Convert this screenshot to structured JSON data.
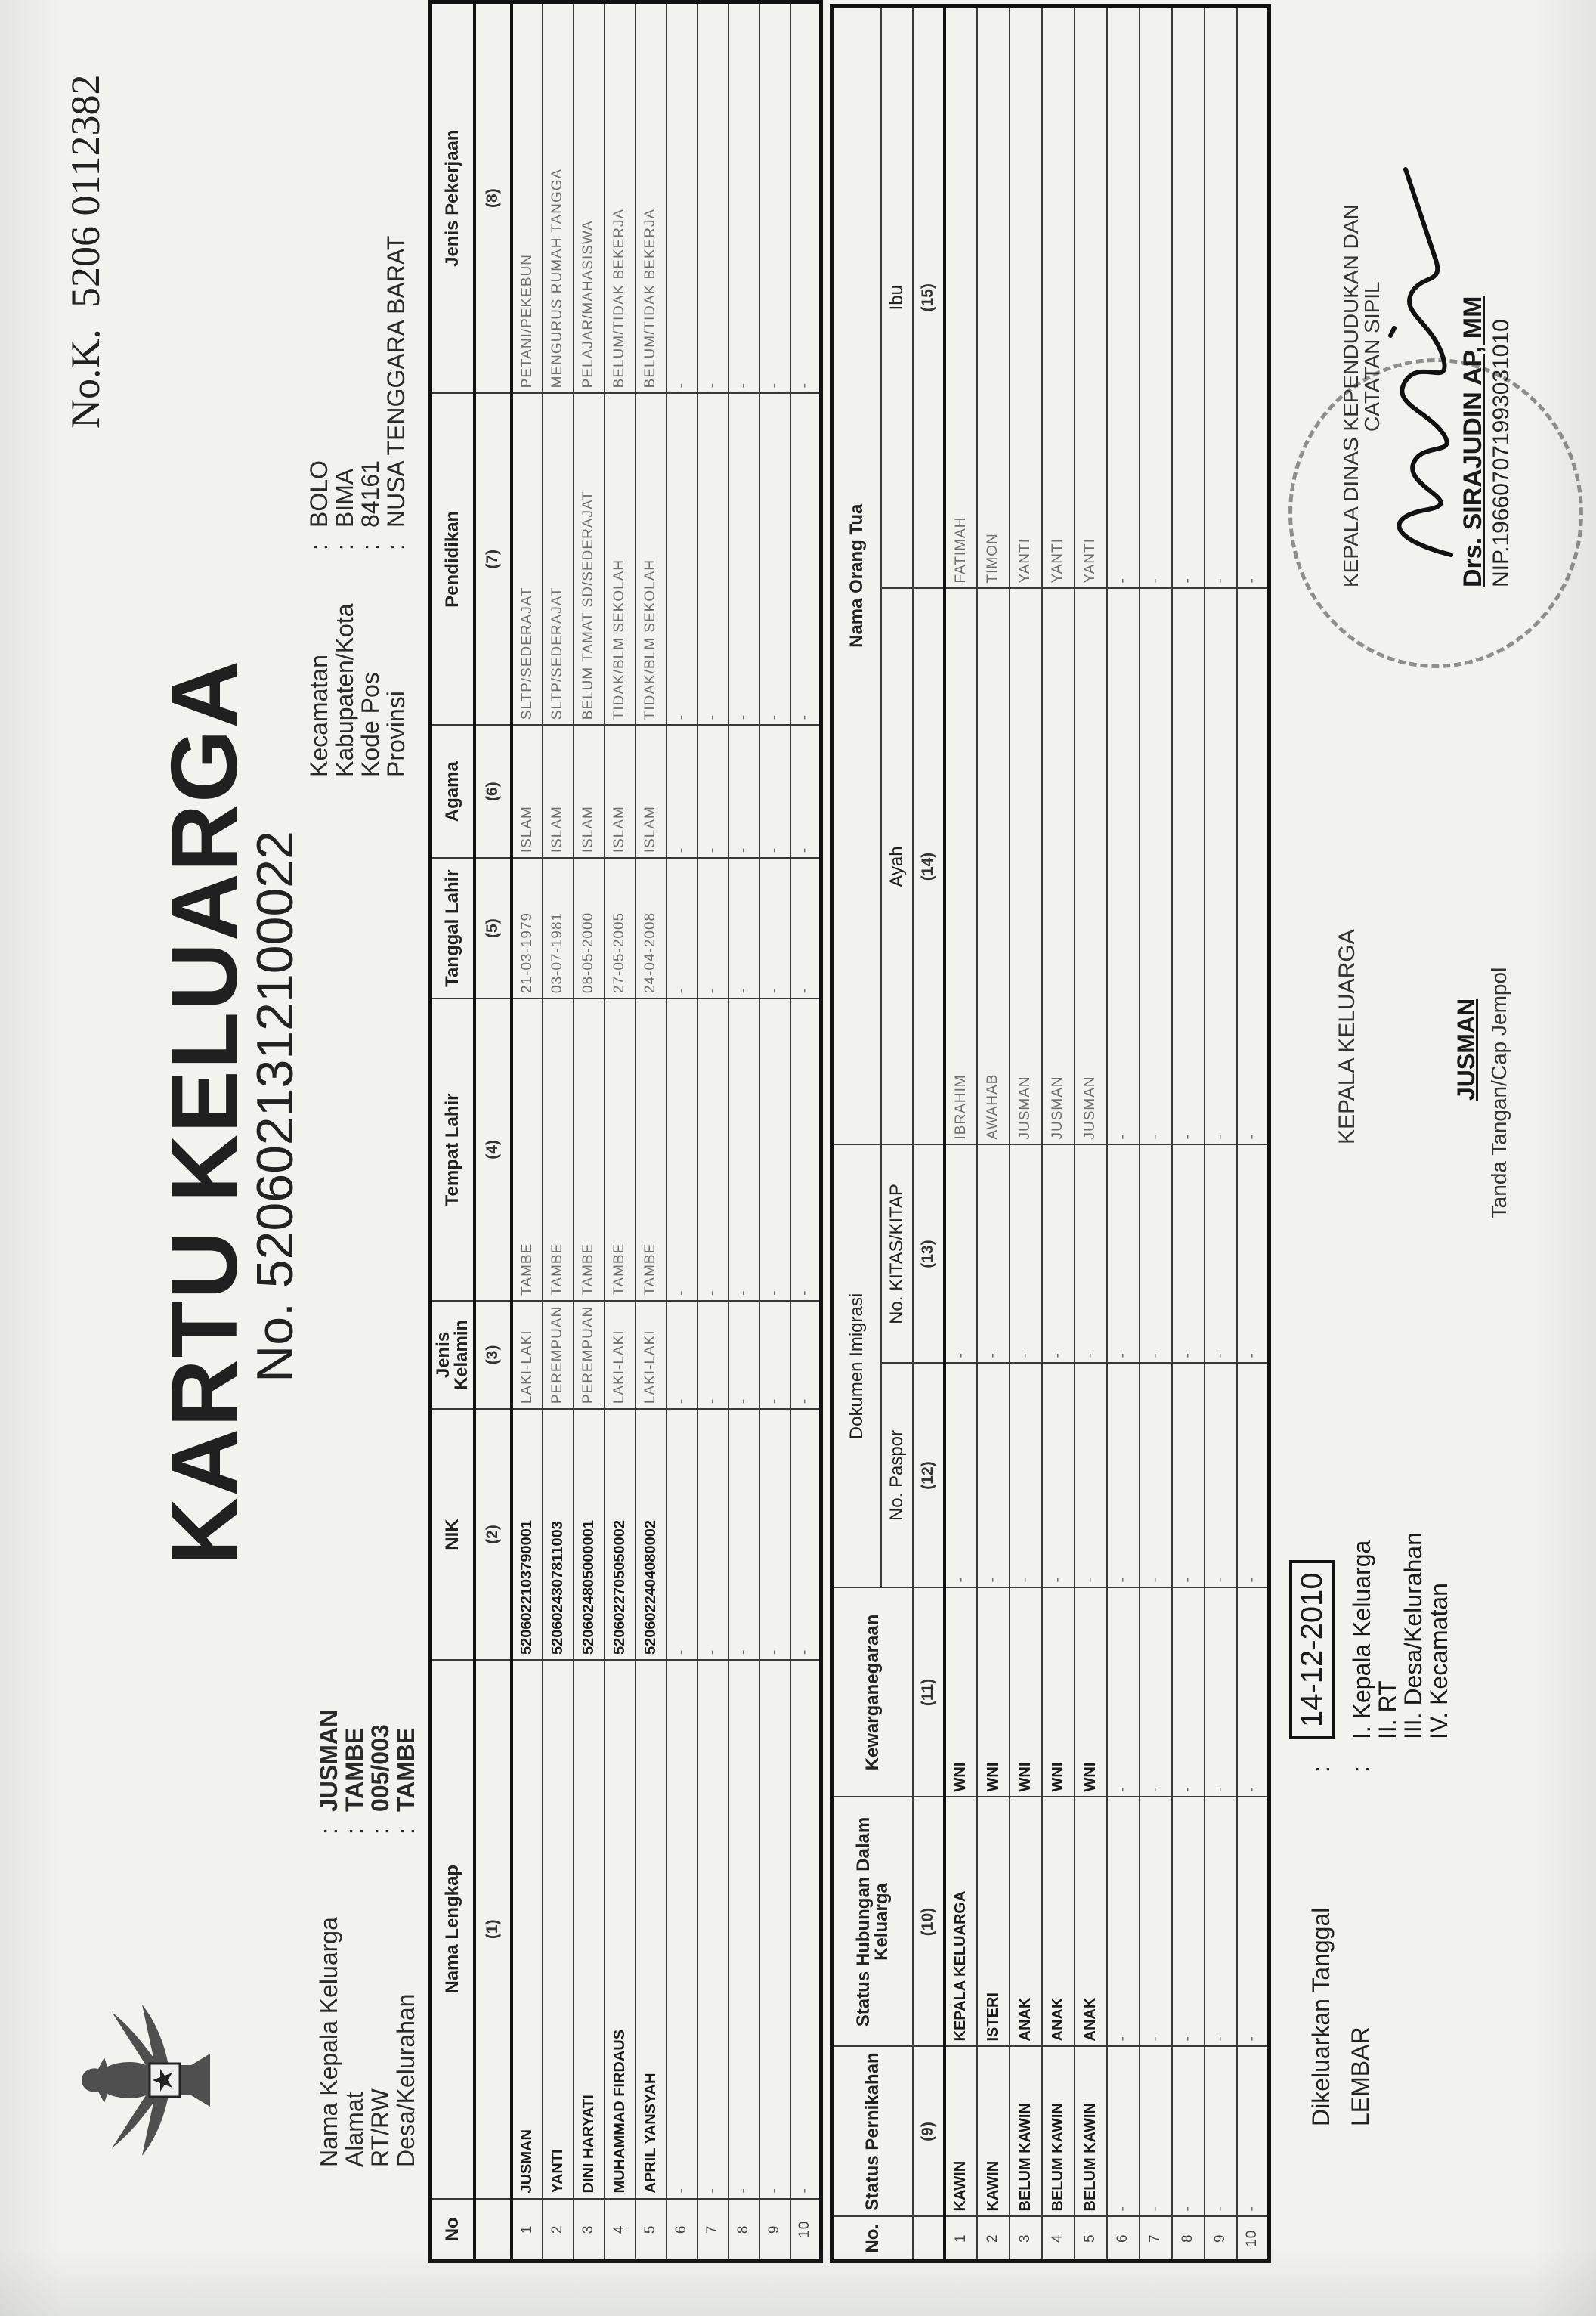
{
  "document": {
    "kk_serial_label": "No.K.",
    "kk_serial": "5206 0112382",
    "title": "KARTU KELUARGA",
    "number": "No. 5206021312100022",
    "header_left": [
      {
        "label": "Nama Kepala Keluarga",
        "value": "JUSMAN"
      },
      {
        "label": "Alamat",
        "value": "TAMBE"
      },
      {
        "label": "RT/RW",
        "value": "005/003"
      },
      {
        "label": "Desa/Kelurahan",
        "value": "TAMBE"
      }
    ],
    "header_right": [
      {
        "label": "Kecamatan",
        "value": "BOLO"
      },
      {
        "label": "Kabupaten/Kota",
        "value": "BIMA"
      },
      {
        "label": "Kode Pos",
        "value": "84161"
      },
      {
        "label": "Provinsi",
        "value": "NUSA TENGGARA BARAT"
      }
    ],
    "colon": ":",
    "table1": {
      "columns": [
        {
          "title": "No",
          "num": ""
        },
        {
          "title": "Nama Lengkap",
          "num": "(1)"
        },
        {
          "title": "NIK",
          "num": "(2)"
        },
        {
          "title": "Jenis Kelamin",
          "num": "(3)"
        },
        {
          "title": "Tempat Lahir",
          "num": "(4)"
        },
        {
          "title": "Tanggal Lahir",
          "num": "(5)"
        },
        {
          "title": "Agama",
          "num": "(6)"
        },
        {
          "title": "Pendidikan",
          "num": "(7)"
        },
        {
          "title": "Jenis Pekerjaan",
          "num": "(8)"
        }
      ],
      "rows": [
        [
          "1",
          "JUSMAN",
          "5206022103790001",
          "LAKI-LAKI",
          "TAMBE",
          "21-03-1979",
          "ISLAM",
          "SLTP/SEDERAJAT",
          "PETANI/PEKEBUN"
        ],
        [
          "2",
          "YANTI",
          "5206024307811003",
          "PEREMPUAN",
          "TAMBE",
          "03-07-1981",
          "ISLAM",
          "SLTP/SEDERAJAT",
          "MENGURUS RUMAH TANGGA"
        ],
        [
          "3",
          "DINI HARYATI",
          "5206024805000001",
          "PEREMPUAN",
          "TAMBE",
          "08-05-2000",
          "ISLAM",
          "BELUM TAMAT SD/SEDERAJAT",
          "PELAJAR/MAHASISWA"
        ],
        [
          "4",
          "MUHAMMAD FIRDAUS",
          "5206022705050002",
          "LAKI-LAKI",
          "TAMBE",
          "27-05-2005",
          "ISLAM",
          "TIDAK/BLM SEKOLAH",
          "BELUM/TIDAK BEKERJA"
        ],
        [
          "5",
          "APRIL YANSYAH",
          "5206022404080002",
          "LAKI-LAKI",
          "TAMBE",
          "24-04-2008",
          "ISLAM",
          "TIDAK/BLM SEKOLAH",
          "BELUM/TIDAK BEKERJA"
        ],
        [
          "6",
          "-",
          "-",
          "-",
          "-",
          "-",
          "-",
          "-",
          "-"
        ],
        [
          "7",
          "-",
          "-",
          "-",
          "-",
          "-",
          "-",
          "-",
          "-"
        ],
        [
          "8",
          "-",
          "-",
          "-",
          "-",
          "-",
          "-",
          "-",
          "-"
        ],
        [
          "9",
          "-",
          "-",
          "-",
          "-",
          "-",
          "-",
          "-",
          "-"
        ],
        [
          "10",
          "-",
          "-",
          "-",
          "-",
          "-",
          "-",
          "-",
          "-"
        ]
      ]
    },
    "table2": {
      "col_no": "No.",
      "col_status": "Status Pernikahan",
      "col_hubungan": "Status Hubungan Dalam Keluarga",
      "col_warga": "Kewarganegaraan",
      "group_dokumen": "Dokumen Imigrasi",
      "col_paspor": "No. Paspor",
      "col_kitas": "No. KITAS/KITAP",
      "group_ortu": "Nama Orang Tua",
      "col_ayah": "Ayah",
      "col_ibu": "Ibu",
      "nums": [
        "",
        "(9)",
        "(10)",
        "(11)",
        "(12)",
        "(13)",
        "(14)",
        "(15)"
      ],
      "rows": [
        [
          "1",
          "KAWIN",
          "KEPALA KELUARGA",
          "WNI",
          "-",
          "-",
          "IBRAHIM",
          "FATIMAH"
        ],
        [
          "2",
          "KAWIN",
          "ISTERI",
          "WNI",
          "-",
          "-",
          "AWAHAB",
          "TIMON"
        ],
        [
          "3",
          "BELUM KAWIN",
          "ANAK",
          "WNI",
          "-",
          "-",
          "JUSMAN",
          "YANTI"
        ],
        [
          "4",
          "BELUM KAWIN",
          "ANAK",
          "WNI",
          "-",
          "-",
          "JUSMAN",
          "YANTI"
        ],
        [
          "5",
          "BELUM KAWIN",
          "ANAK",
          "WNI",
          "-",
          "-",
          "JUSMAN",
          "YANTI"
        ],
        [
          "6",
          "-",
          "-",
          "-",
          "-",
          "-",
          "-",
          "-"
        ],
        [
          "7",
          "-",
          "-",
          "-",
          "-",
          "-",
          "-",
          "-"
        ],
        [
          "8",
          "-",
          "-",
          "-",
          "-",
          "-",
          "-",
          "-"
        ],
        [
          "9",
          "-",
          "-",
          "-",
          "-",
          "-",
          "-",
          "-"
        ],
        [
          "10",
          "-",
          "-",
          "-",
          "-",
          "-",
          "-",
          "-"
        ]
      ]
    },
    "footer": {
      "issued_label": "Dikeluarkan Tanggal",
      "issued_date": "14-12-2010",
      "lembar_label": "LEMBAR",
      "lembar_items": [
        "I.  Kepala Keluarga",
        "II. RT",
        "III. Desa/Kelurahan",
        "IV. Kecamatan"
      ],
      "kk_sign_title": "KEPALA KELUARGA",
      "kk_sign_name": "JUSMAN",
      "kk_sign_caption": "Tanda Tangan/Cap Jempol",
      "official_title_1": "KEPALA DINAS KEPENDUDUKAN DAN",
      "official_title_2": "CATATAN SIPIL",
      "official_name": "Drs. SIRAJUDIN AP, MM",
      "official_nip": "NIP.196607071993031010"
    },
    "emblem": "garuda-pancasila",
    "stamp_text": "DINAS KEPENDUDUKAN DAN CATATAN SIPIL"
  }
}
